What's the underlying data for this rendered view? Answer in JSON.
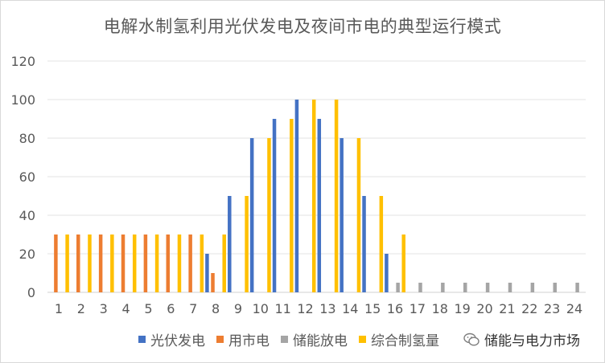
{
  "chart_data": {
    "type": "bar",
    "title": "电解水制氢利用光伏发电及夜间市电的典型运行模式",
    "categories": [
      "1",
      "2",
      "3",
      "4",
      "5",
      "6",
      "7",
      "8",
      "9",
      "10",
      "11",
      "12",
      "13",
      "14",
      "15",
      "16",
      "17",
      "18",
      "19",
      "20",
      "21",
      "22",
      "23",
      "24"
    ],
    "ylim": [
      0,
      120
    ],
    "yticks": [
      "0",
      "20",
      "40",
      "60",
      "80",
      "100",
      "120"
    ],
    "grid": true,
    "legend_position": "bottom",
    "series": [
      {
        "name": "光伏发电",
        "color": "#4472C4",
        "values": [
          0,
          0,
          0,
          0,
          0,
          0,
          0,
          20,
          50,
          80,
          90,
          100,
          90,
          80,
          50,
          20,
          0,
          0,
          0,
          0,
          0,
          0,
          0,
          0
        ]
      },
      {
        "name": "用市电",
        "color": "#ED7D31",
        "values": [
          30,
          30,
          30,
          30,
          30,
          30,
          30,
          10,
          0,
          0,
          0,
          0,
          0,
          0,
          0,
          0,
          0,
          0,
          0,
          0,
          0,
          0,
          0,
          0
        ]
      },
      {
        "name": "储能放电",
        "color": "#A5A5A5",
        "values": [
          0,
          0,
          0,
          0,
          0,
          0,
          0,
          0,
          0,
          0,
          0,
          0,
          0,
          0,
          0,
          5,
          5,
          5,
          5,
          5,
          5,
          5,
          5,
          5
        ]
      },
      {
        "name": "综合制氢量",
        "color": "#FFC000",
        "values": [
          30,
          30,
          30,
          30,
          30,
          30,
          30,
          30,
          50,
          80,
          90,
          100,
          100,
          80,
          50,
          30,
          0,
          0,
          0,
          0,
          0,
          0,
          0,
          0
        ]
      }
    ]
  },
  "watermark": {
    "text": "储能与电力市场",
    "icon": "wechat-icon"
  }
}
